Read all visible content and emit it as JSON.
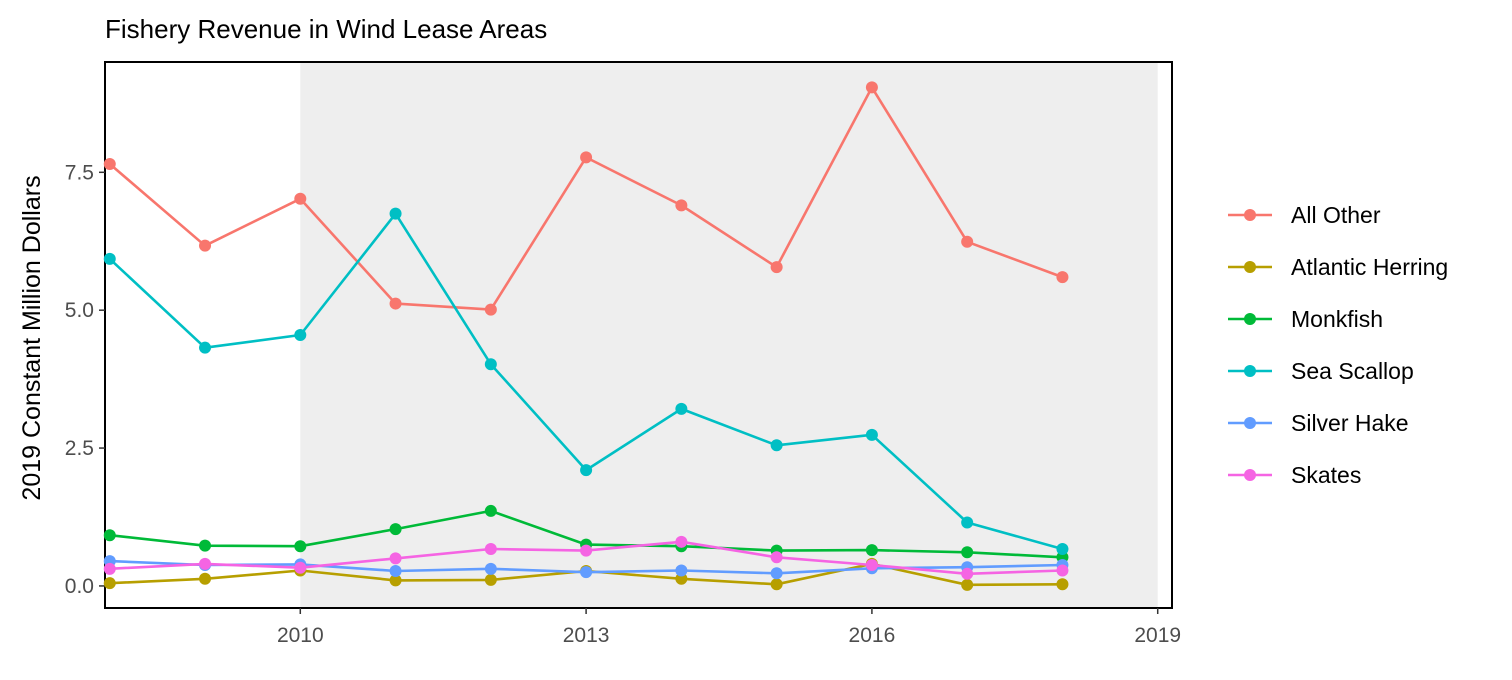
{
  "chart_data": {
    "type": "line",
    "title": "Fishery Revenue in Wind Lease Areas",
    "xlabel": "",
    "ylabel": "2019 Constant Million Dollars",
    "x": [
      2008,
      2009,
      2010,
      2011,
      2012,
      2013,
      2014,
      2015,
      2016,
      2017,
      2018
    ],
    "xlim": [
      2007.95,
      2019.15
    ],
    "ylim": [
      -0.4,
      9.5
    ],
    "x_ticks": [
      {
        "value": 2010,
        "label": "2010"
      },
      {
        "value": 2013,
        "label": "2013"
      },
      {
        "value": 2016,
        "label": "2016"
      },
      {
        "value": 2019,
        "label": "2019"
      }
    ],
    "y_ticks": [
      {
        "value": 0,
        "label": "0.0"
      },
      {
        "value": 2.5,
        "label": "2.5"
      },
      {
        "value": 5,
        "label": "5.0"
      },
      {
        "value": 7.5,
        "label": "7.5"
      }
    ],
    "shaded_region": {
      "x_from": 2010,
      "x_to": 2019,
      "color": "#eeeeee"
    },
    "grid": false,
    "legend_position": "right",
    "series": [
      {
        "name": "All Other",
        "color": "#F8766D",
        "values": [
          7.65,
          6.17,
          7.02,
          5.12,
          5.01,
          7.77,
          6.9,
          5.78,
          9.04,
          6.24,
          5.6
        ]
      },
      {
        "name": "Atlantic Herring",
        "color": "#B79F00",
        "values": [
          0.05,
          0.13,
          0.28,
          0.1,
          0.11,
          0.27,
          0.13,
          0.03,
          0.4,
          0.02,
          0.03
        ]
      },
      {
        "name": "Monkfish",
        "color": "#00BA38",
        "values": [
          0.92,
          0.73,
          0.72,
          1.03,
          1.36,
          0.75,
          0.72,
          0.64,
          0.65,
          0.61,
          0.52
        ]
      },
      {
        "name": "Sea Scallop",
        "color": "#00BFC4",
        "values": [
          5.93,
          4.32,
          4.55,
          6.75,
          4.02,
          2.1,
          3.21,
          2.55,
          2.74,
          1.15,
          0.67
        ]
      },
      {
        "name": "Silver Hake",
        "color": "#619CFF",
        "values": [
          0.45,
          0.38,
          0.39,
          0.27,
          0.31,
          0.25,
          0.28,
          0.23,
          0.32,
          0.34,
          0.38
        ]
      },
      {
        "name": "Skates",
        "color": "#F564E3",
        "values": [
          0.31,
          0.4,
          0.33,
          0.5,
          0.67,
          0.64,
          0.8,
          0.52,
          0.38,
          0.22,
          0.28
        ]
      }
    ]
  }
}
